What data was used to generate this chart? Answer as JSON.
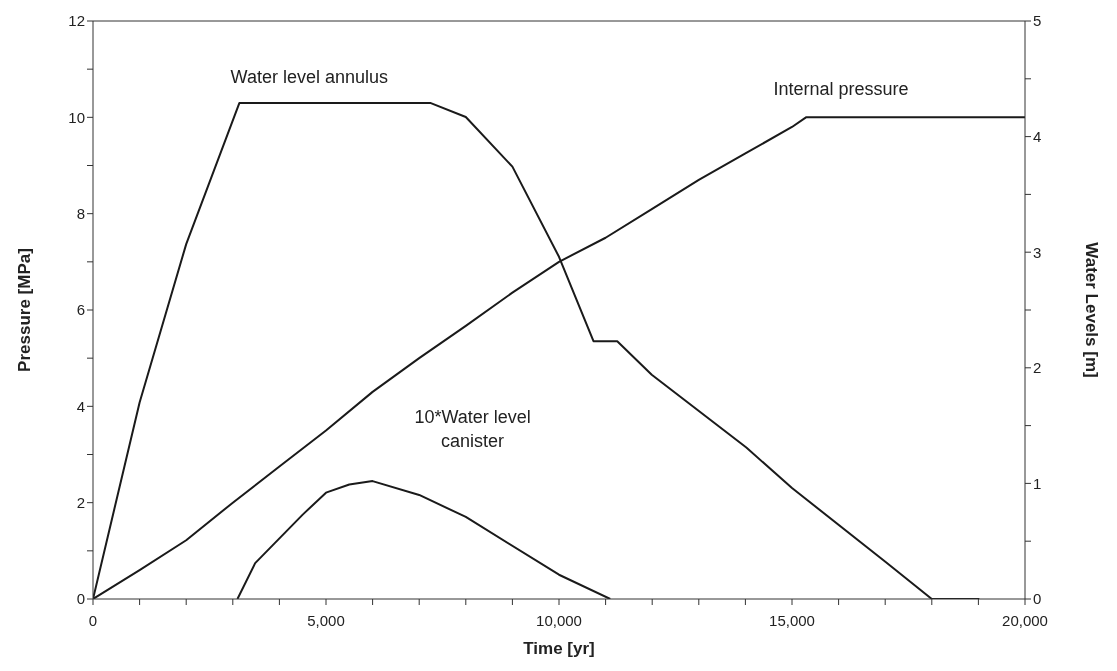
{
  "chart_data": {
    "type": "line",
    "xlabel": "Time [yr]",
    "ylabel": "Pressure [MPa]",
    "y2label": "Water Levels [m]",
    "xlim": [
      0,
      20000
    ],
    "xticks": [
      0,
      {
        "value": 1000,
        "label": null
      },
      {
        "value": 2000,
        "label": null
      },
      {
        "value": 3000,
        "label": null
      },
      {
        "value": 4000,
        "label": null
      },
      {
        "value": 5000,
        "label": "5,000"
      },
      {
        "value": 6000,
        "label": null
      },
      {
        "value": 7000,
        "label": null
      },
      {
        "value": 8000,
        "label": null
      },
      {
        "value": 9000,
        "label": null
      },
      {
        "value": 10000,
        "label": "10,000"
      },
      {
        "value": 11000,
        "label": null
      },
      {
        "value": 12000,
        "label": null
      },
      {
        "value": 13000,
        "label": null
      },
      {
        "value": 14000,
        "label": null
      },
      {
        "value": 15000,
        "label": "15,000"
      },
      {
        "value": 16000,
        "label": null
      },
      {
        "value": 17000,
        "label": null
      },
      {
        "value": 18000,
        "label": null
      },
      {
        "value": 19000,
        "label": null
      },
      {
        "value": 20000,
        "label": "20,000"
      }
    ],
    "ylim": [
      0,
      12
    ],
    "yticks": [
      0,
      {
        "value": 1,
        "label": null
      },
      2,
      {
        "value": 3,
        "label": null
      },
      4,
      {
        "value": 5,
        "label": null
      },
      6,
      {
        "value": 7,
        "label": null
      },
      8,
      {
        "value": 9,
        "label": null
      },
      10,
      {
        "value": 11,
        "label": null
      },
      12
    ],
    "y2lim": [
      0,
      5
    ],
    "y2ticks": [
      0,
      {
        "value": 0.5,
        "label": null
      },
      1,
      {
        "value": 1.5,
        "label": null
      },
      2,
      {
        "value": 2.5,
        "label": null
      },
      3,
      {
        "value": 3.5,
        "label": null
      },
      4,
      {
        "value": 4.5,
        "label": null
      },
      5
    ],
    "marker": "none",
    "line_style": "solid",
    "series": [
      {
        "name": "Water level annulus",
        "color": "#1a1a1a",
        "axis": "y2",
        "x": [
          0,
          1000,
          2000,
          3140,
          7250,
          8000,
          9000,
          10000,
          10740,
          11250,
          11990,
          14020,
          15000,
          17010,
          18000,
          19020
        ],
        "values": [
          0,
          1.7,
          3.07,
          4.29,
          4.29,
          4.17,
          3.74,
          2.96,
          2.23,
          2.23,
          1.94,
          1.31,
          0.96,
          0.32,
          0,
          0
        ]
      },
      {
        "name": "Internal pressure",
        "color": "#1a1a1a",
        "x": [
          0,
          1000,
          2000,
          3000,
          4000,
          5000,
          6000,
          7000,
          8000,
          9000,
          10000,
          11000,
          12000,
          13000,
          14000,
          15000,
          15300,
          20000
        ],
        "values": [
          0,
          0.6,
          1.22,
          2.0,
          2.75,
          3.5,
          4.3,
          5.0,
          5.67,
          6.36,
          7.0,
          7.5,
          8.1,
          8.7,
          9.25,
          9.8,
          10.0,
          10.0
        ]
      },
      {
        "name": "10*Water level canister",
        "color": "#1a1a1a",
        "axis": "y2",
        "x": [
          3100,
          3480,
          4500,
          5000,
          5500,
          6000,
          7000,
          8000,
          10000,
          11100
        ],
        "values": [
          0,
          0.31,
          0.73,
          0.92,
          0.99,
          1.02,
          0.9,
          0.71,
          0.21,
          0
        ]
      }
    ]
  }
}
